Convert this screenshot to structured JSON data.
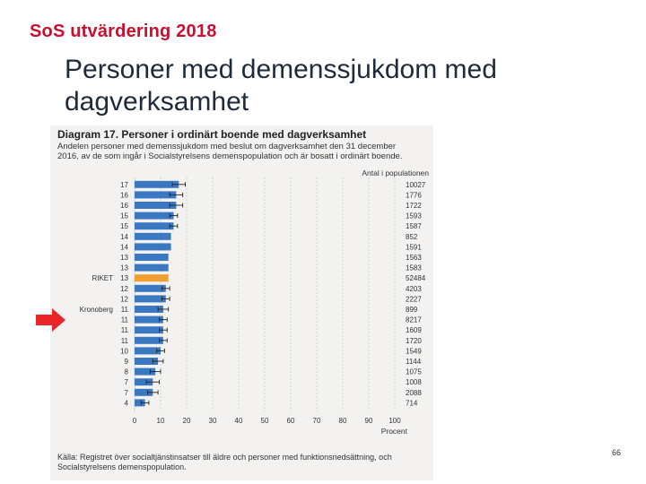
{
  "header": {
    "brand": "SoS utvärdering 2018"
  },
  "slide": {
    "title": "Personer med demenssjukdom med dagverksamhet",
    "page_number": "66"
  },
  "figure": {
    "title": "Diagram 17. Personer i ordinärt boende med dagverksamhet",
    "subtitle": "Andelen personer med demenssjukdom med beslut om dagverksamhet den 31 december 2016, av de som ingår i Socialstyrelsens demenspopulation och är bosatt i ordinärt boende.",
    "source": "Källa: Registret över socialtjänstinsatser till äldre och personer med funktionsnedsättning, och Socialstyrelsens demenspopulation."
  },
  "colors": {
    "bar": "#3a78c2",
    "highlight": "#f0a030",
    "arrow": "#e8262a",
    "grid": "#c9c9c9",
    "background": "#f4f2f0"
  },
  "chart_data": {
    "type": "bar",
    "orientation": "horizontal",
    "xlabel": "Procent",
    "right_header": "Antal i populationen",
    "xlim": [
      0,
      100
    ],
    "xticks": [
      0,
      10,
      20,
      30,
      40,
      50,
      60,
      70,
      80,
      90,
      100
    ],
    "highlight_category": "RIKET",
    "arrow_category": "Kronoberg",
    "rows": [
      {
        "label": "",
        "value": 17,
        "display": "17",
        "ci": 2.5,
        "n": "10027"
      },
      {
        "label": "",
        "value": 16,
        "display": "16",
        "ci": 2.5,
        "n": "1776"
      },
      {
        "label": "",
        "value": 16,
        "display": "16",
        "ci": 2.5,
        "n": "1722"
      },
      {
        "label": "",
        "value": 15,
        "display": "15",
        "ci": 1.5,
        "n": "1593"
      },
      {
        "label": "",
        "value": 15,
        "display": "15",
        "ci": 1.5,
        "n": "1587"
      },
      {
        "label": "",
        "value": 14,
        "display": "14",
        "ci": 0,
        "n": "852"
      },
      {
        "label": "",
        "value": 14,
        "display": "14",
        "ci": 0,
        "n": "1591"
      },
      {
        "label": "",
        "value": 13,
        "display": "13",
        "ci": 0,
        "n": "1563"
      },
      {
        "label": "",
        "value": 13,
        "display": "13",
        "ci": 0,
        "n": "1583"
      },
      {
        "label": "RIKET",
        "value": 13,
        "display": "13",
        "ci": 0,
        "n": "52484"
      },
      {
        "label": "",
        "value": 12,
        "display": "12",
        "ci": 1.5,
        "n": "4203"
      },
      {
        "label": "",
        "value": 12,
        "display": "12",
        "ci": 1.5,
        "n": "2227"
      },
      {
        "label": "Kronoberg",
        "value": 11,
        "display": "11",
        "ci": 2,
        "n": "899"
      },
      {
        "label": "",
        "value": 11,
        "display": "11",
        "ci": 1.5,
        "n": "8217"
      },
      {
        "label": "",
        "value": 11,
        "display": "11",
        "ci": 1.5,
        "n": "1609"
      },
      {
        "label": "",
        "value": 11,
        "display": "11",
        "ci": 1.5,
        "n": "1720"
      },
      {
        "label": "",
        "value": 10,
        "display": "10",
        "ci": 1.5,
        "n": "1549"
      },
      {
        "label": "",
        "value": 9,
        "display": "9",
        "ci": 2,
        "n": "1144"
      },
      {
        "label": "",
        "value": 8,
        "display": "8",
        "ci": 2,
        "n": "1075"
      },
      {
        "label": "",
        "value": 7,
        "display": "7",
        "ci": 2.5,
        "n": "1008"
      },
      {
        "label": "",
        "value": 7,
        "display": "7",
        "ci": 2,
        "n": "2088"
      },
      {
        "label": "",
        "value": 4,
        "display": "4",
        "ci": 1.5,
        "n": "714"
      }
    ]
  }
}
